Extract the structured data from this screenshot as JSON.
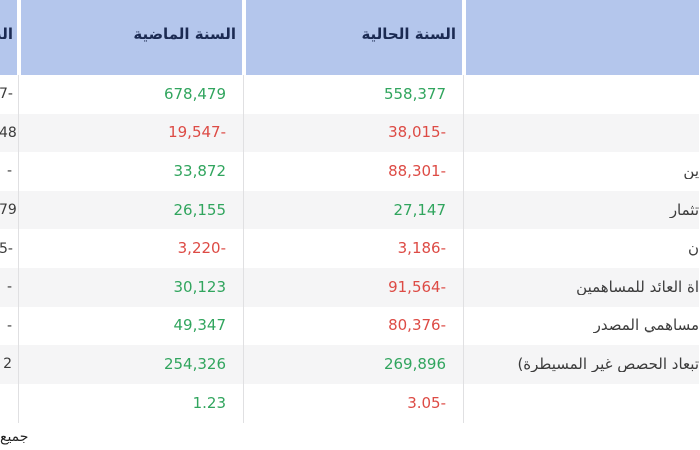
{
  "table": {
    "header": {
      "row_label_header": "",
      "current_year_label": "السنة الحالية",
      "last_year_label": "السنة الماضية",
      "change_label_fragment": "الت"
    },
    "rows": [
      {
        "label": "",
        "current": "558,377",
        "current_color": "positive",
        "last": "678,479",
        "last_color": "positive",
        "change_fragment": "7-"
      },
      {
        "label": "",
        "current": "38,015-",
        "current_color": "negative",
        "last": "19,547-",
        "last_color": "negative",
        "change_fragment": "48"
      },
      {
        "label": "ين",
        "current": "88,301-",
        "current_color": "negative",
        "last": "33,872",
        "last_color": "positive",
        "change_fragment": "-"
      },
      {
        "label": "تثمار",
        "current": "27,147",
        "current_color": "positive",
        "last": "26,155",
        "last_color": "positive",
        "change_fragment": "79"
      },
      {
        "label": "ن",
        "current": "3,186-",
        "current_color": "negative",
        "last": "3,220-",
        "last_color": "negative",
        "change_fragment": "5-"
      },
      {
        "label": "اة العائد للمساهمين",
        "current": "91,564-",
        "current_color": "negative",
        "last": "30,123",
        "last_color": "positive",
        "change_fragment": "-"
      },
      {
        "label": "مساهمي المصدر",
        "current": "80,376-",
        "current_color": "negative",
        "last": "49,347",
        "last_color": "positive",
        "change_fragment": "-"
      },
      {
        "label": "تبعاد الحصص غير المسيطرة)",
        "current": "269,896",
        "current_color": "positive",
        "last": "254,326",
        "last_color": "positive",
        "change_fragment": "2"
      },
      {
        "label": "",
        "current": "3.05-",
        "current_color": "negative",
        "last": "1.23",
        "last_color": "positive",
        "change_fragment": ""
      }
    ]
  },
  "footnote_fragment": "جميع",
  "colors": {
    "positive": "#31a55e",
    "negative": "#dd4b45",
    "header_bg": "#b4c6ec",
    "header_text": "#1b2a52",
    "label_text": "#3b3b3b",
    "stripe": "#f5f5f6",
    "separator": "#e0e0e2"
  }
}
